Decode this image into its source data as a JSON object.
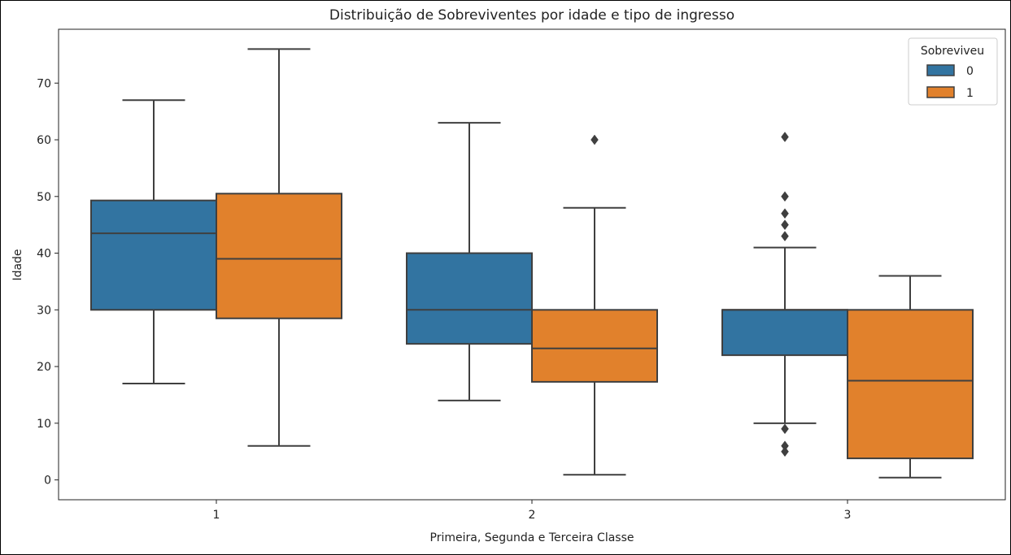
{
  "chart_data": {
    "type": "box",
    "title": "Distribuição de Sobreviventes por idade e tipo de ingresso",
    "xlabel": "Primeira, Segunda e Terceira Classe",
    "ylabel": "Idade",
    "categories": [
      "1",
      "2",
      "3"
    ],
    "ylim": [
      -3.5,
      79.5
    ],
    "yticks": [
      0,
      10,
      20,
      30,
      40,
      50,
      60,
      70
    ],
    "yticklabels": [
      "0",
      "10",
      "20",
      "30",
      "40",
      "50",
      "60",
      "70"
    ],
    "grid": false,
    "legend": {
      "title": "Sobreviveu",
      "position": "top-right",
      "entries": [
        "0",
        "1"
      ]
    },
    "series": [
      {
        "name": "0",
        "color": "#3274a1",
        "boxes": [
          {
            "category": "1",
            "whisker_low": 17,
            "q1": 30,
            "median": 43.5,
            "q3": 49.3,
            "whisker_high": 67,
            "outliers": []
          },
          {
            "category": "2",
            "whisker_low": 14,
            "q1": 24,
            "median": 30,
            "q3": 40,
            "whisker_high": 63,
            "outliers": []
          },
          {
            "category": "3",
            "whisker_low": 10,
            "q1": 22,
            "median": 30,
            "q3": 30,
            "whisker_high": 41,
            "outliers": [
              43,
              45,
              47,
              50,
              60.5,
              9,
              6,
              5
            ]
          }
        ]
      },
      {
        "name": "1",
        "color": "#e1812c",
        "boxes": [
          {
            "category": "1",
            "whisker_low": 6,
            "q1": 28.5,
            "median": 39,
            "q3": 50.5,
            "whisker_high": 76,
            "outliers": []
          },
          {
            "category": "2",
            "whisker_low": 0.9,
            "q1": 17.3,
            "median": 23.2,
            "q3": 30,
            "whisker_high": 48,
            "outliers": [
              60
            ]
          },
          {
            "category": "3",
            "whisker_low": 0.4,
            "q1": 3.8,
            "median": 17.5,
            "q3": 30,
            "whisker_high": 36,
            "outliers": []
          }
        ]
      }
    ]
  }
}
